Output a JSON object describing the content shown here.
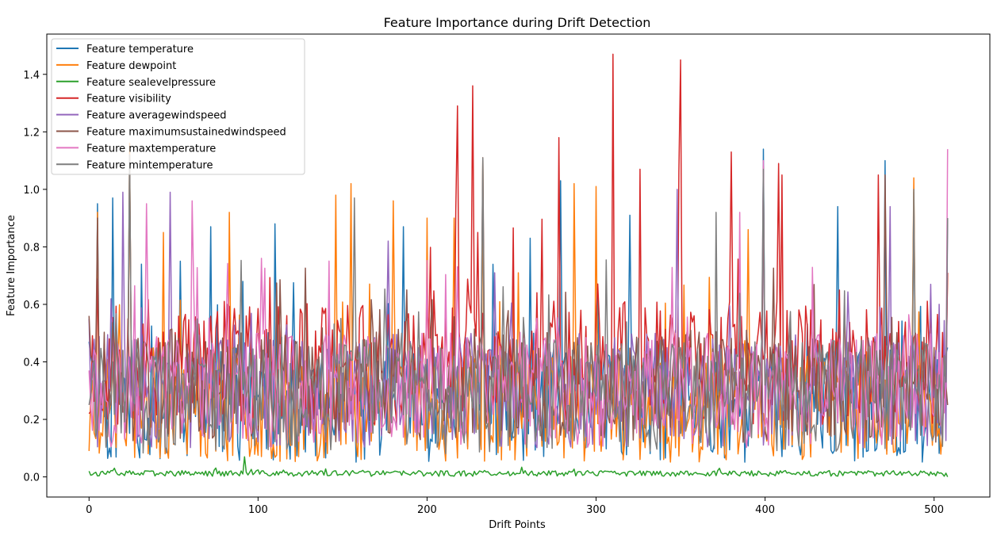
{
  "chart_data": {
    "type": "line",
    "title": "Feature Importance during Drift Detection",
    "xlabel": "Drift Points",
    "ylabel": "Feature Importance",
    "xlim": [
      -25,
      533
    ],
    "ylim": [
      -0.07,
      1.54
    ],
    "x_ticks": [
      0,
      100,
      200,
      300,
      400,
      500
    ],
    "y_ticks": [
      0.0,
      0.2,
      0.4,
      0.6,
      0.8,
      1.0,
      1.2,
      1.4
    ],
    "y_tick_labels": [
      "0.0",
      "0.2",
      "0.4",
      "0.6",
      "0.8",
      "1.0",
      "1.2",
      "1.4"
    ],
    "x_tick_labels": [
      "0",
      "100",
      "200",
      "300",
      "400",
      "500"
    ],
    "legend_position": "top-left",
    "grid": false,
    "n_points": 509,
    "series": [
      {
        "name": "Feature temperature",
        "color": "#1f77b4",
        "points": [
          [
            0,
            0.47
          ],
          [
            5,
            0.95
          ],
          [
            14,
            0.97
          ],
          [
            31,
            0.74
          ],
          [
            54,
            0.75
          ],
          [
            72,
            0.87
          ],
          [
            91,
            0.68
          ],
          [
            110,
            0.88
          ],
          [
            186,
            0.87
          ],
          [
            233,
            0.96
          ],
          [
            261,
            0.83
          ],
          [
            279,
            1.03
          ],
          [
            320,
            0.91
          ],
          [
            399,
            1.14
          ],
          [
            443,
            0.94
          ],
          [
            471,
            1.1
          ],
          [
            488,
            0.99
          ],
          [
            508,
            0.45
          ]
        ],
        "base": 0.25,
        "amp": 0.2,
        "seed": 11
      },
      {
        "name": "Feature dewpoint",
        "color": "#ff7f0e",
        "points": [
          [
            0,
            0.09
          ],
          [
            5,
            0.92
          ],
          [
            24,
            1.16
          ],
          [
            44,
            0.85
          ],
          [
            83,
            0.92
          ],
          [
            146,
            0.98
          ],
          [
            155,
            1.02
          ],
          [
            180,
            0.96
          ],
          [
            200,
            0.9
          ],
          [
            216,
            0.9
          ],
          [
            233,
            1.11
          ],
          [
            287,
            1.02
          ],
          [
            300,
            1.01
          ],
          [
            390,
            0.86
          ],
          [
            488,
            1.04
          ],
          [
            508,
            0.71
          ]
        ],
        "base": 0.25,
        "amp": 0.2,
        "seed": 23
      },
      {
        "name": "Feature sealevelpressure",
        "color": "#2ca02c",
        "points": [
          [
            0,
            0.02
          ],
          [
            92,
            0.07
          ],
          [
            508,
            0.0
          ]
        ],
        "base": 0.012,
        "amp": 0.01,
        "seed": 37
      },
      {
        "name": "Feature visibility",
        "color": "#d62728",
        "points": [
          [
            0,
            0.22
          ],
          [
            23,
            0.55
          ],
          [
            218,
            1.29
          ],
          [
            227,
            1.36
          ],
          [
            230,
            0.85
          ],
          [
            278,
            1.18
          ],
          [
            310,
            1.47
          ],
          [
            326,
            1.07
          ],
          [
            349,
            1.06
          ],
          [
            350,
            1.45
          ],
          [
            380,
            1.13
          ],
          [
            408,
            1.09
          ],
          [
            410,
            1.05
          ],
          [
            467,
            1.05
          ],
          [
            508,
            0.71
          ]
        ],
        "base": 0.4,
        "amp": 0.22,
        "seed": 53
      },
      {
        "name": "Feature averagewindspeed",
        "color": "#9467bd",
        "points": [
          [
            0,
            0.55
          ],
          [
            20,
            0.99
          ],
          [
            48,
            0.99
          ],
          [
            177,
            0.82
          ],
          [
            240,
            0.71
          ],
          [
            348,
            1.0
          ],
          [
            474,
            0.94
          ],
          [
            498,
            0.67
          ],
          [
            508,
            0.9
          ]
        ],
        "base": 0.3,
        "amp": 0.2,
        "seed": 71
      },
      {
        "name": "Feature maximumsustainedwindspeed",
        "color": "#8c564b",
        "points": [
          [
            0,
            0.56
          ],
          [
            5,
            0.9
          ],
          [
            24,
            1.12
          ],
          [
            233,
            1.11
          ],
          [
            399,
            1.08
          ],
          [
            471,
            1.05
          ],
          [
            508,
            0.25
          ]
        ],
        "base": 0.32,
        "amp": 0.2,
        "seed": 89
      },
      {
        "name": "Feature maxtemperature",
        "color": "#e377c2",
        "points": [
          [
            0,
            0.37
          ],
          [
            34,
            0.95
          ],
          [
            61,
            0.96
          ],
          [
            102,
            0.76
          ],
          [
            385,
            0.92
          ],
          [
            399,
            1.1
          ],
          [
            508,
            1.14
          ]
        ],
        "base": 0.3,
        "amp": 0.2,
        "seed": 97
      },
      {
        "name": "Feature mintemperature",
        "color": "#7f7f7f",
        "points": [
          [
            0,
            0.25
          ],
          [
            24,
            1.12
          ],
          [
            157,
            0.97
          ],
          [
            233,
            1.11
          ],
          [
            371,
            0.92
          ],
          [
            399,
            1.07
          ],
          [
            488,
            1.0
          ],
          [
            508,
            0.9
          ]
        ],
        "base": 0.28,
        "amp": 0.2,
        "seed": 131
      }
    ]
  }
}
